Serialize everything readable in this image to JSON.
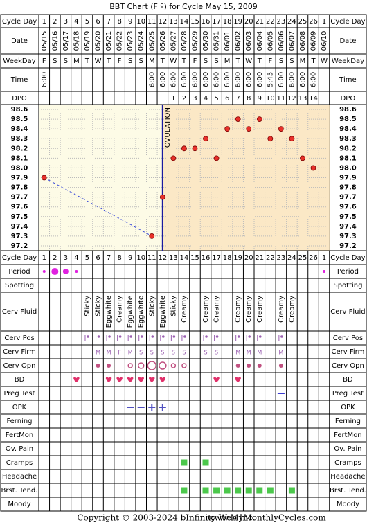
{
  "title": "BBT Chart (F º) for Cycle May 15, 2009",
  "row_labels": {
    "cycle_day": "Cycle Day",
    "date": "Date",
    "weekday": "WeekDay",
    "time": "Time",
    "dpo": "DPO"
  },
  "cycle_days": [
    1,
    2,
    3,
    4,
    5,
    6,
    7,
    8,
    9,
    10,
    11,
    12,
    13,
    14,
    15,
    16,
    17,
    18,
    19,
    20,
    21,
    22,
    23,
    24,
    25,
    26,
    1
  ],
  "dates": [
    "05/15",
    "05/16",
    "05/17",
    "05/18",
    "05/19",
    "05/20",
    "05/21",
    "05/22",
    "05/23",
    "05/24",
    "05/25",
    "05/26",
    "05/27",
    "05/28",
    "05/29",
    "05/30",
    "05/31",
    "06/01",
    "06/02",
    "06/03",
    "06/04",
    "06/05",
    "06/06",
    "06/07",
    "06/08",
    "06/09",
    "06/10"
  ],
  "weekdays": [
    "F",
    "S",
    "S",
    "M",
    "T",
    "W",
    "T",
    "F",
    "S",
    "S",
    "M",
    "T",
    "W",
    "T",
    "F",
    "S",
    "S",
    "M",
    "T",
    "W",
    "T",
    "F",
    "S",
    "S",
    "M",
    "T",
    "W"
  ],
  "times": [
    "6:00",
    null,
    null,
    null,
    null,
    null,
    null,
    null,
    null,
    null,
    "6:00",
    "6:00",
    "6:00",
    "6:00",
    "6:00",
    "6:00",
    "6:00",
    "6:00",
    "6:00",
    "6:00",
    "6:00",
    "5:45",
    "6:00",
    "6:00",
    "6:00",
    "6:00",
    null
  ],
  "dpo": [
    null,
    null,
    null,
    null,
    null,
    null,
    null,
    null,
    null,
    null,
    null,
    null,
    1,
    2,
    3,
    4,
    5,
    6,
    7,
    8,
    9,
    10,
    11,
    12,
    13,
    14,
    null
  ],
  "chart_data": {
    "type": "line",
    "values": [
      97.9,
      null,
      null,
      null,
      null,
      null,
      null,
      null,
      null,
      null,
      97.3,
      97.7,
      98.1,
      98.2,
      98.2,
      98.3,
      98.1,
      98.4,
      98.5,
      98.4,
      98.5,
      98.3,
      98.4,
      98.3,
      98.1,
      98.0,
      null
    ],
    "color": "#e8312a",
    "ylim": [
      97.15,
      98.65
    ],
    "yticks": [
      98.6,
      98.5,
      98.4,
      98.3,
      98.2,
      98.1,
      {
        "value": 98,
        "label": "98.0"
      },
      97.9,
      97.8,
      97.7,
      97.6,
      97.5,
      97.4,
      97.3,
      97.2
    ],
    "grid": true,
    "ovulation_label": "OVULATION"
  },
  "rows": [
    {
      "label": "Period"
    },
    {
      "label": "Spotting"
    },
    {
      "label": "Cerv Fluid",
      "values": [
        null,
        null,
        null,
        null,
        "Sticky",
        "Sticky",
        "Eggwhite",
        "Creamy",
        "Eggwhite",
        "Eggwhite",
        "Sticky",
        "Eggwhite",
        "Sticky",
        "Creamy",
        null,
        "Creamy",
        "Creamy",
        null,
        "Creamy",
        "Creamy",
        "Creamy",
        null,
        "Creamy",
        "Creamy",
        null,
        null,
        null
      ]
    },
    {
      "label": "Cerv Pos"
    },
    {
      "label": "Cerv Firm",
      "values": [
        null,
        null,
        null,
        null,
        null,
        "M",
        "M",
        "F",
        "M",
        "S",
        "S",
        "S",
        "S",
        "S",
        null,
        "S",
        "S",
        null,
        "M",
        "M",
        "M",
        null,
        "M",
        null,
        null,
        null,
        null
      ]
    },
    {
      "label": "Cerv Opn"
    },
    {
      "label": "BD"
    },
    {
      "label": "Preg Test"
    },
    {
      "label": "OPK"
    },
    {
      "label": "Ferning"
    },
    {
      "label": "FertMon"
    },
    {
      "label": "Ov. Pain"
    },
    {
      "label": "Cramps"
    },
    {
      "label": "Headache"
    },
    {
      "label": "Brst. Tend."
    },
    {
      "label": "Moody"
    }
  ],
  "footer": {
    "copyright": "Copyright © 2003-2024 bInfinity Web Inc.",
    "site": "www.MyMonthlyCycles.com"
  }
}
